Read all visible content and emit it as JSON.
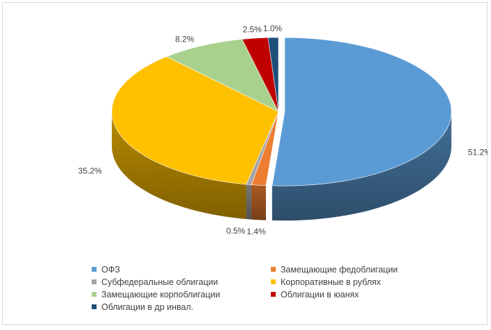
{
  "chart_data": {
    "type": "pie",
    "title": "",
    "categories": [
      "ОФЗ",
      "Замещающие федоблигации",
      "Субфедеральные облигации",
      "Корпоративные в рублях",
      "Замещающие корпоблигации",
      "Облигации в юанях",
      "Облигации в др инвал."
    ],
    "values": [
      51.2,
      1.4,
      0.5,
      35.2,
      8.2,
      2.5,
      1.0
    ],
    "value_labels": [
      "51.2%",
      "1.4%",
      "0.5%",
      "35.2%",
      "8.2%",
      "2.5%",
      "1.0%"
    ],
    "colors": [
      "#5B9BD5",
      "#ED7D31",
      "#A5A5A5",
      "#FFC000",
      "#A9D18E",
      "#C00000",
      "#1F4E79"
    ],
    "style": "3d-exploded",
    "legend_position": "bottom"
  }
}
